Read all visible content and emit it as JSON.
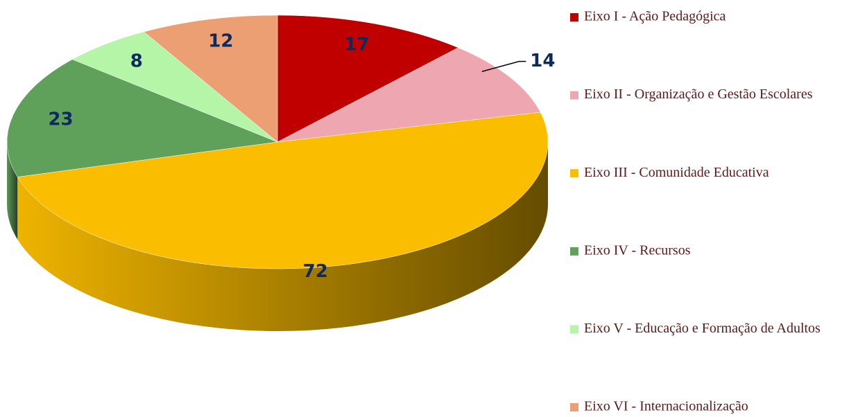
{
  "chart_data": {
    "type": "pie",
    "categories": [
      "Eixo I - Ação Pedagógica",
      "Eixo II - Organização e Gestão Escolares",
      "Eixo III - Comunidade Educativa",
      "Eixo IV - Recursos",
      "Eixo V - Educação e Formação de Adultos",
      "Eixo VI - Internacionalização"
    ],
    "values": [
      17,
      14,
      72,
      23,
      8,
      12
    ],
    "colors": [
      "#c00000",
      "#eea7b0",
      "#fbbd00",
      "#5fa05a",
      "#b5f5a8",
      "#eb9f72"
    ],
    "legend": "right"
  }
}
